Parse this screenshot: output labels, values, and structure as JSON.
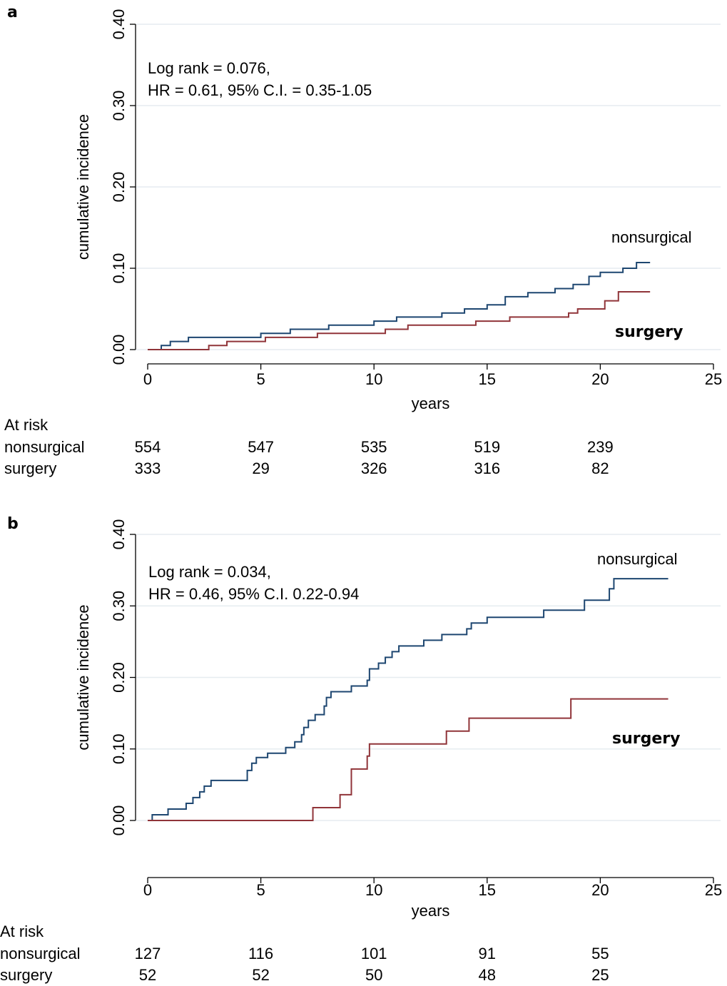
{
  "chart_data": [
    {
      "type": "line",
      "step": true,
      "panel": "a",
      "annotations": [
        "Log rank = 0.076,",
        "HR = 0.61, 95% C.I. = 0.35-1.05"
      ],
      "xlabel": "years",
      "ylabel": "cumulative incidence",
      "xlim": [
        0,
        25
      ],
      "xticks": [
        0,
        5,
        10,
        15,
        20,
        25
      ],
      "ylim": [
        0,
        0.4
      ],
      "yticks": [
        {
          "value": 0,
          "label": "0.00"
        },
        {
          "value": 0.1,
          "label": "0.10"
        },
        {
          "value": 0.2,
          "label": "0.20"
        },
        {
          "value": 0.3,
          "label": "0.30"
        },
        {
          "value": 0.4,
          "label": "0.40"
        }
      ],
      "grid": true,
      "series": [
        {
          "name": "nonsurgical",
          "color": "#1d4670",
          "x": [
            0,
            0.6,
            1,
            1.8,
            5,
            6.3,
            8,
            10,
            11,
            13,
            14,
            15,
            15.8,
            16.8,
            18,
            18.8,
            19.5,
            20,
            21,
            21.6,
            22.2
          ],
          "values": [
            0,
            0.005,
            0.01,
            0.015,
            0.02,
            0.025,
            0.03,
            0.035,
            0.04,
            0.045,
            0.05,
            0.055,
            0.065,
            0.07,
            0.075,
            0.08,
            0.09,
            0.095,
            0.1,
            0.107,
            0.107
          ]
        },
        {
          "name": "surgery",
          "color": "#903439",
          "x": [
            0,
            2.7,
            3.5,
            5.2,
            7.5,
            10.5,
            11.5,
            14.5,
            16,
            18.6,
            19,
            20.2,
            20.8,
            22.2
          ],
          "values": [
            0,
            0.005,
            0.01,
            0.015,
            0.02,
            0.025,
            0.03,
            0.035,
            0.04,
            0.045,
            0.05,
            0.06,
            0.071,
            0.071
          ]
        }
      ],
      "at_risk": {
        "title": "At risk",
        "rows": [
          {
            "name": "nonsurgical",
            "values": [
              554,
              547,
              535,
              519,
              239
            ]
          },
          {
            "name": "surgery",
            "values": [
              333,
              29,
              326,
              316,
              82
            ]
          }
        ]
      }
    },
    {
      "type": "line",
      "step": true,
      "panel": "b",
      "annotations": [
        "Log rank = 0.034,",
        "HR = 0.46, 95% C.I. 0.22-0.94"
      ],
      "xlabel": "years",
      "ylabel": "cumulative incidence",
      "xlim": [
        0,
        25
      ],
      "xticks": [
        0,
        5,
        10,
        15,
        20,
        25
      ],
      "ylim": [
        0,
        0.4
      ],
      "yticks": [
        {
          "value": 0,
          "label": "0.00"
        },
        {
          "value": 0.1,
          "label": "0.10"
        },
        {
          "value": 0.2,
          "label": "0.20"
        },
        {
          "value": 0.3,
          "label": "0.30"
        },
        {
          "value": 0.4,
          "label": "0.40"
        }
      ],
      "grid": true,
      "series": [
        {
          "name": "nonsurgical",
          "color": "#1d4670",
          "x": [
            0,
            0.2,
            0.9,
            1.7,
            2.0,
            2.3,
            2.5,
            2.8,
            4.4,
            4.6,
            4.8,
            5.3,
            6.1,
            6.5,
            6.8,
            6.9,
            7.1,
            7.4,
            7.8,
            7.9,
            8.1,
            9,
            9.7,
            9.8,
            10.2,
            10.5,
            10.8,
            11.1,
            12.2,
            13,
            14.1,
            14.3,
            15,
            17.5,
            19.3,
            20.4,
            20.6,
            23
          ],
          "values": [
            0,
            0.008,
            0.016,
            0.024,
            0.032,
            0.04,
            0.048,
            0.056,
            0.07,
            0.08,
            0.088,
            0.094,
            0.102,
            0.11,
            0.12,
            0.13,
            0.14,
            0.148,
            0.16,
            0.172,
            0.18,
            0.188,
            0.196,
            0.212,
            0.22,
            0.228,
            0.236,
            0.244,
            0.252,
            0.26,
            0.268,
            0.276,
            0.284,
            0.294,
            0.308,
            0.324,
            0.338,
            0.338
          ]
        },
        {
          "name": "surgery",
          "color": "#903439",
          "x": [
            0,
            7.3,
            8.5,
            9.0,
            9.7,
            9.8,
            13.2,
            14.2,
            18.7,
            23
          ],
          "values": [
            0,
            0.018,
            0.036,
            0.072,
            0.09,
            0.107,
            0.125,
            0.143,
            0.17,
            0.17
          ]
        }
      ],
      "at_risk": {
        "title": "At risk",
        "rows": [
          {
            "name": "nonsurgical",
            "values": [
              127,
              116,
              101,
              91,
              55
            ]
          },
          {
            "name": "surgery",
            "values": [
              52,
              52,
              50,
              48,
              25
            ]
          }
        ]
      }
    }
  ]
}
